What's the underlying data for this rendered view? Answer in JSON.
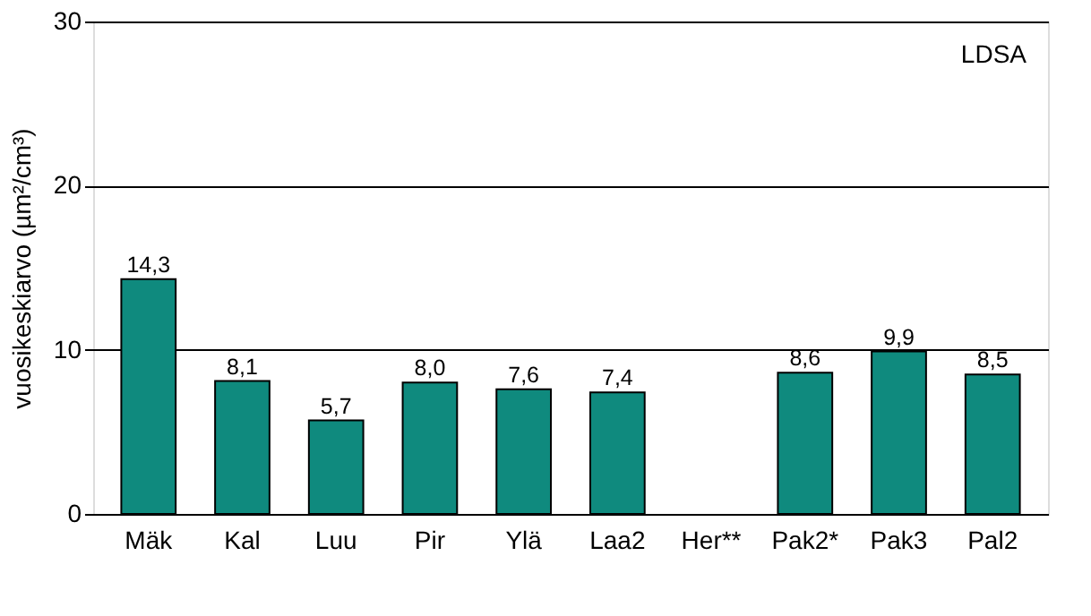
{
  "chart_data": {
    "type": "bar",
    "categories": [
      "Mäk",
      "Kal",
      "Luu",
      "Pir",
      "Ylä",
      "Laa2",
      "Her**",
      "Pak2*",
      "Pak3",
      "Pal2"
    ],
    "values": [
      14.3,
      8.1,
      5.7,
      8.0,
      7.6,
      7.4,
      null,
      8.6,
      9.9,
      8.5
    ],
    "value_labels": [
      "14,3",
      "8,1",
      "5,7",
      "8,0",
      "7,6",
      "7,4",
      null,
      "8,6",
      "9,9",
      "8,5"
    ],
    "color": "#0f8a7e",
    "ylabel": "vuosikeskiarvo (µm²/cm³)",
    "ylim": [
      0,
      30
    ],
    "yticks": [
      0,
      10,
      20,
      30
    ],
    "grid": "y",
    "annotations": [
      "LDSA"
    ]
  }
}
